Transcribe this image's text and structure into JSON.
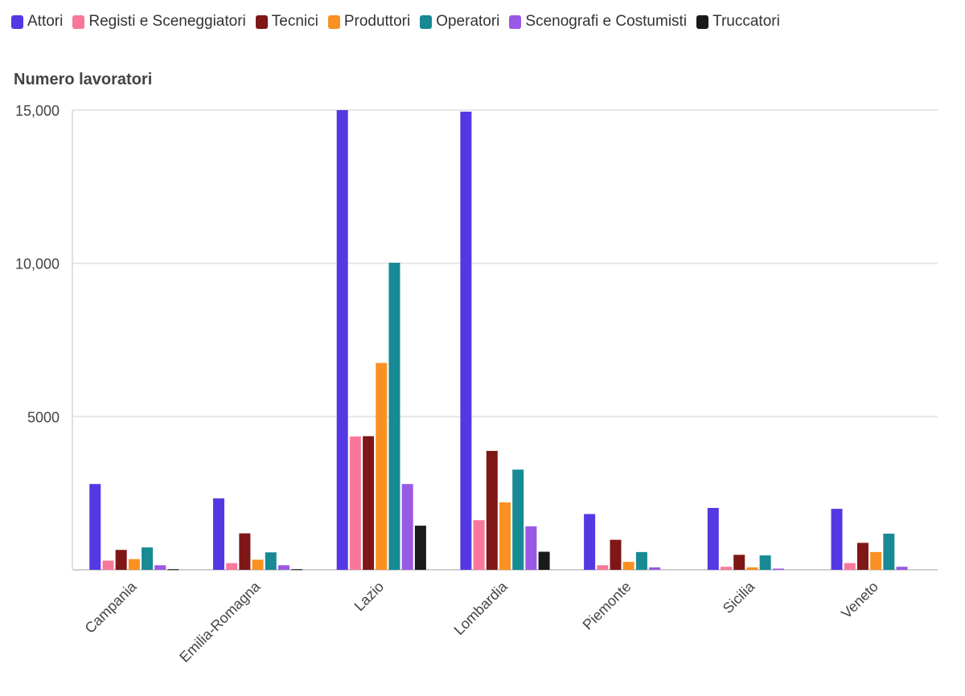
{
  "chart_data": {
    "type": "bar",
    "title": "",
    "xlabel": "",
    "ylabel": "Numero lavoratori",
    "ylim": [
      0,
      15000
    ],
    "yticks": [
      0,
      5000,
      10000,
      15000
    ],
    "ytick_labels": [
      "",
      "5000",
      "10,000",
      "15,000"
    ],
    "grid": true,
    "legend_position": "top-left",
    "categories": [
      "Campania",
      "Emilia-Romagna",
      "Lazio",
      "Lombardia",
      "Piemonte",
      "Sicilia",
      "Veneto"
    ],
    "series": [
      {
        "name": "Attori",
        "color": "#5438e4",
        "values": [
          2800,
          2330,
          15000,
          14950,
          1820,
          2020,
          1990
        ]
      },
      {
        "name": "Registi e Sceneggiatori",
        "color": "#f9789a",
        "values": [
          300,
          220,
          4350,
          1620,
          150,
          100,
          220
        ]
      },
      {
        "name": "Tecnici",
        "color": "#7f1716",
        "values": [
          650,
          1190,
          4360,
          3880,
          980,
          490,
          880
        ]
      },
      {
        "name": "Produttori",
        "color": "#fb9022",
        "values": [
          350,
          330,
          6750,
          2200,
          260,
          80,
          580
        ]
      },
      {
        "name": "Operatori",
        "color": "#178a93",
        "values": [
          730,
          570,
          10020,
          3270,
          580,
          470,
          1180
        ]
      },
      {
        "name": "Scenografi e Costumisti",
        "color": "#9a59e4",
        "values": [
          150,
          150,
          2800,
          1420,
          80,
          40,
          100
        ]
      },
      {
        "name": "Truccatori",
        "color": "#1a1a1a",
        "values": [
          20,
          20,
          1440,
          590,
          0,
          0,
          0
        ]
      }
    ]
  }
}
